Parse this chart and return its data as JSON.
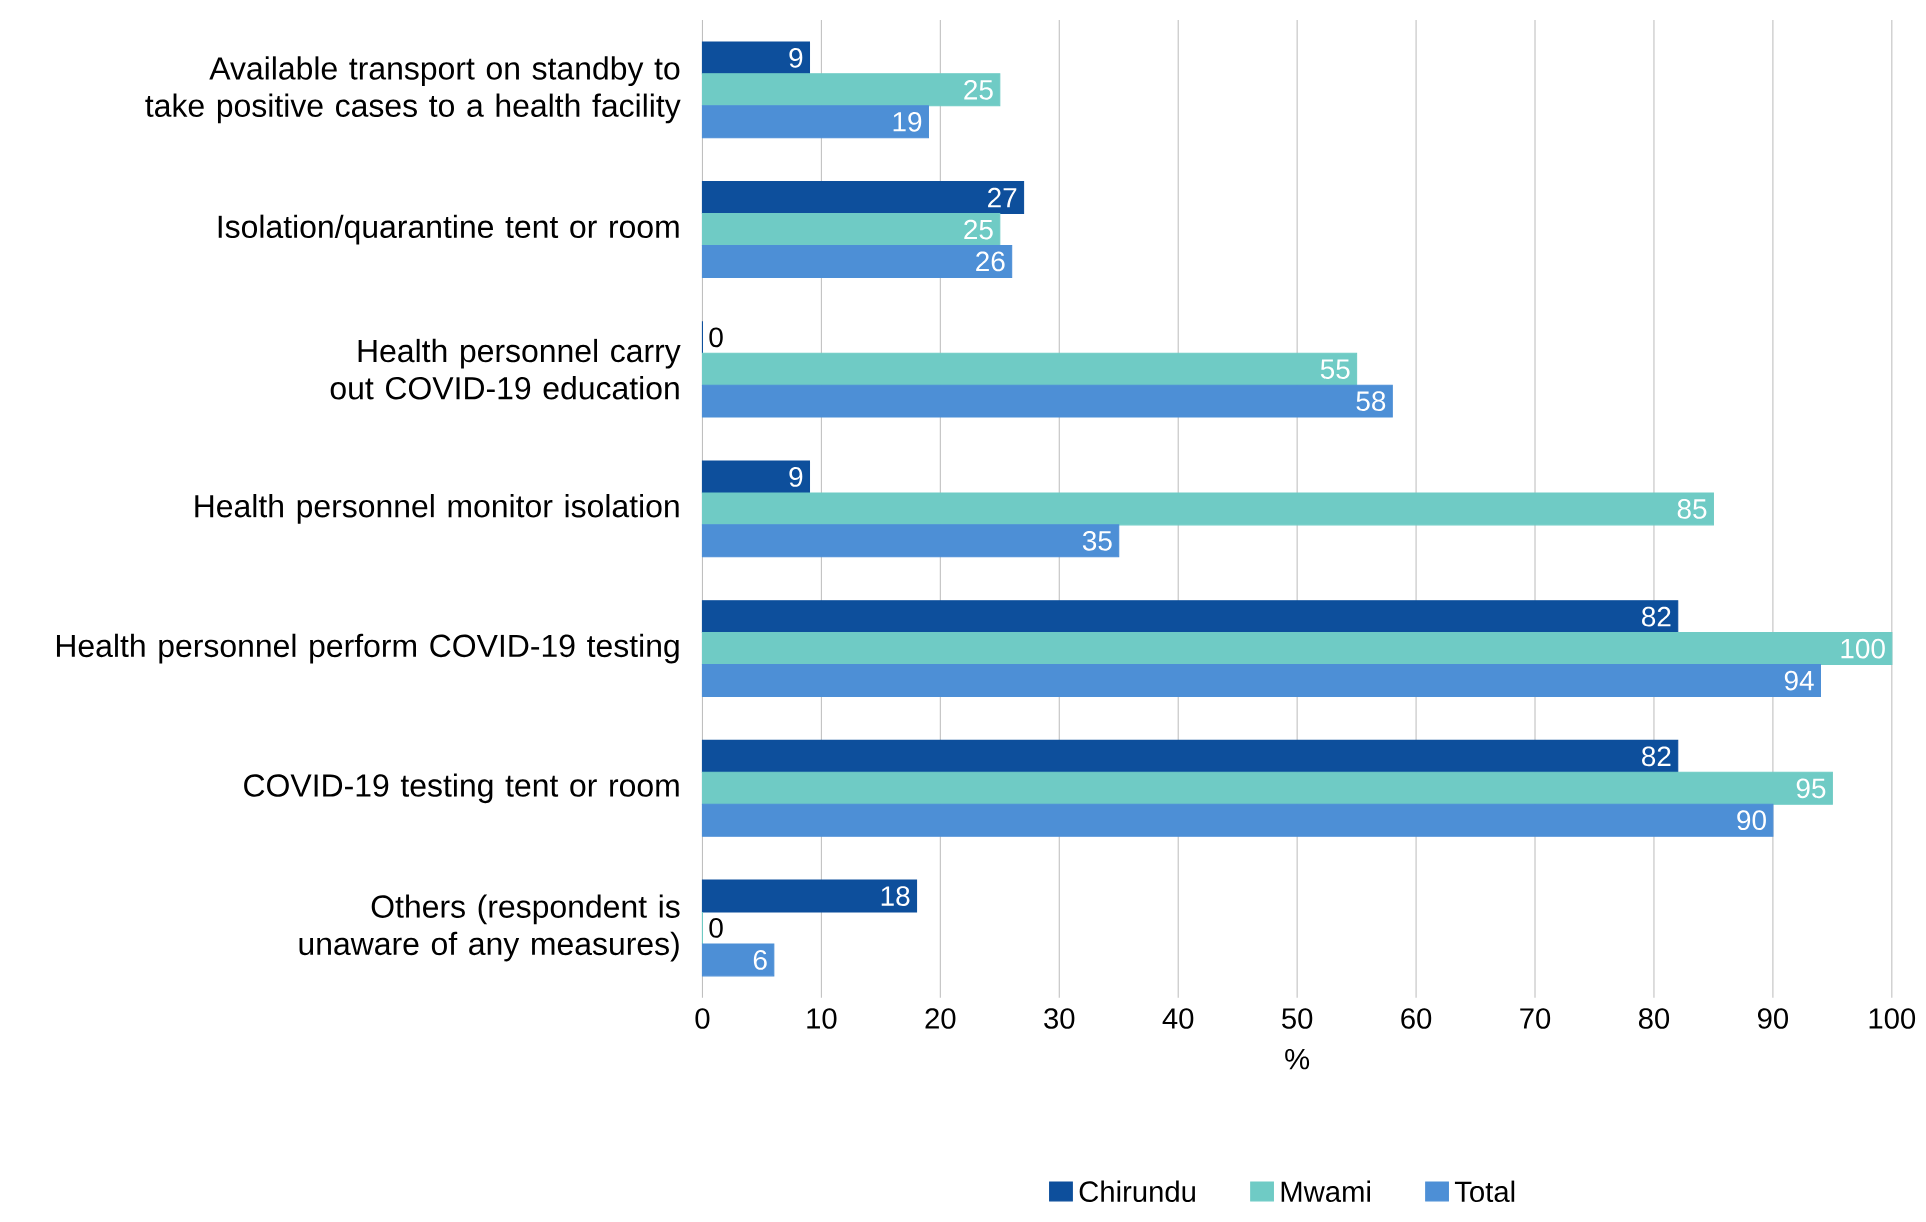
{
  "chart_data": {
    "type": "bar",
    "orientation": "horizontal",
    "categories": [
      "Available transport on standby to take positive cases to a health facility",
      "Isolation/quarantine tent or room",
      "Health personnel carry out COVID-19 education",
      "Health personnel monitor isolation",
      "Health personnel perform COVID-19 testing",
      "COVID-19  testing tent or room",
      "Others (respondent is unaware of any measures)"
    ],
    "series": [
      {
        "name": "Chirundu",
        "color": "#0d4f9c",
        "values": [
          9,
          27,
          0,
          9,
          82,
          82,
          18
        ]
      },
      {
        "name": "Mwami",
        "color": "#6fcbc5",
        "values": [
          25,
          25,
          55,
          85,
          100,
          95,
          0
        ]
      },
      {
        "name": "Total",
        "color": "#4d8fd6",
        "values": [
          19,
          26,
          58,
          35,
          94,
          90,
          6
        ]
      }
    ],
    "xlabel": "%",
    "xlim": [
      0,
      100
    ],
    "xticks": [
      0,
      10,
      20,
      30,
      40,
      50,
      60,
      70,
      80,
      90,
      100
    ],
    "grid": "x",
    "legend": "bottom",
    "data_labels": true
  }
}
